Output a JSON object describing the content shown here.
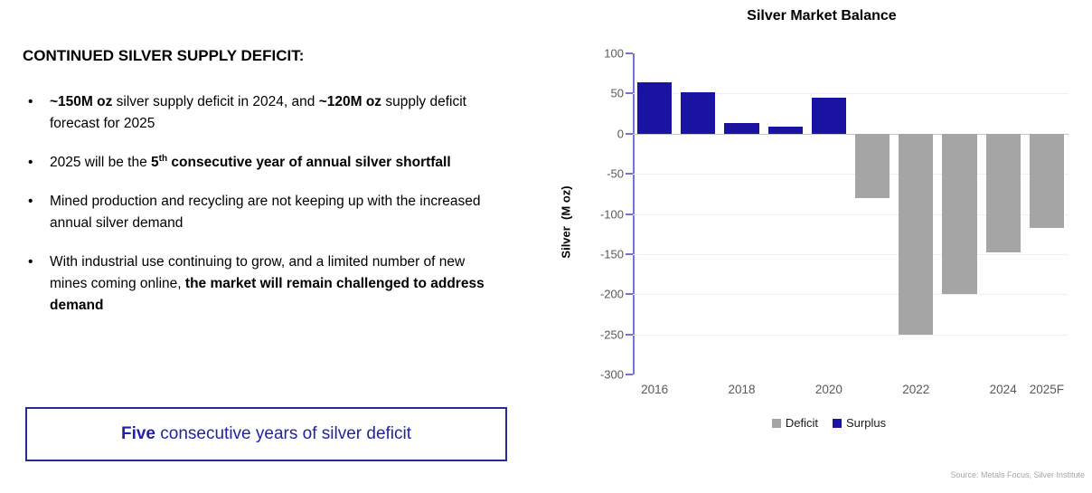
{
  "left_panel": {
    "heading": "CONTINUED SILVER SUPPLY DEFICIT:",
    "bullets": [
      {
        "segments": [
          {
            "t": "~150M oz",
            "b": true
          },
          {
            "t": " silver supply deficit in 2024, and ",
            "b": false
          },
          {
            "t": "~120M oz",
            "b": true
          },
          {
            "t": " supply deficit forecast for 2025",
            "b": false
          }
        ]
      },
      {
        "segments": [
          {
            "t": "2025 will be the ",
            "b": false
          },
          {
            "t": "5",
            "b": true
          },
          {
            "t": "th",
            "b": true,
            "sup": true
          },
          {
            "t": " consecutive year of annual silver shortfall",
            "b": true
          }
        ]
      },
      {
        "segments": [
          {
            "t": "Mined production and recycling are not keeping up with the increased annual silver demand",
            "b": false
          }
        ]
      },
      {
        "segments": [
          {
            "t": "With industrial use continuing to grow, and a limited number of new mines coming online, ",
            "b": false
          },
          {
            "t": "the market will remain challenged to address demand",
            "b": true
          }
        ]
      }
    ],
    "callout": {
      "segments": [
        {
          "t": "Five",
          "b": true
        },
        {
          "t": " consecutive years of silver deficit",
          "b": false
        }
      ]
    }
  },
  "chart_data": {
    "type": "bar",
    "title": "Silver Market Balance",
    "ylabel": "Silver  (M oz)",
    "categories": [
      "2016",
      "2017",
      "2018",
      "2019",
      "2020",
      "2021",
      "2022",
      "2023",
      "2024",
      "2025F"
    ],
    "values": [
      64,
      52,
      13,
      9,
      45,
      -80,
      -250,
      -200,
      -148,
      -118
    ],
    "x_tick_labels": [
      "2016",
      "2018",
      "2020",
      "2022",
      "2024",
      "2025F"
    ],
    "x_tick_positions": [
      0,
      2,
      4,
      6,
      8,
      9
    ],
    "y_ticks": [
      100,
      50,
      0,
      -50,
      -100,
      -150,
      -200,
      -250,
      -300
    ],
    "ylim": [
      -300,
      100
    ],
    "grid": true,
    "legend_position": "bottom",
    "legend": [
      {
        "label": "Deficit",
        "series": "deficit"
      },
      {
        "label": "Surplus",
        "series": "surplus"
      }
    ],
    "colors": {
      "surplus": "#1A12A0",
      "deficit": "#A5A5A5",
      "axis": "#7373D9",
      "grid": "#EFEFEF",
      "zero_line": "#C6C6C6",
      "tick_text": "#595959"
    },
    "source": "Source: Metals Focus, Silver Institute"
  }
}
